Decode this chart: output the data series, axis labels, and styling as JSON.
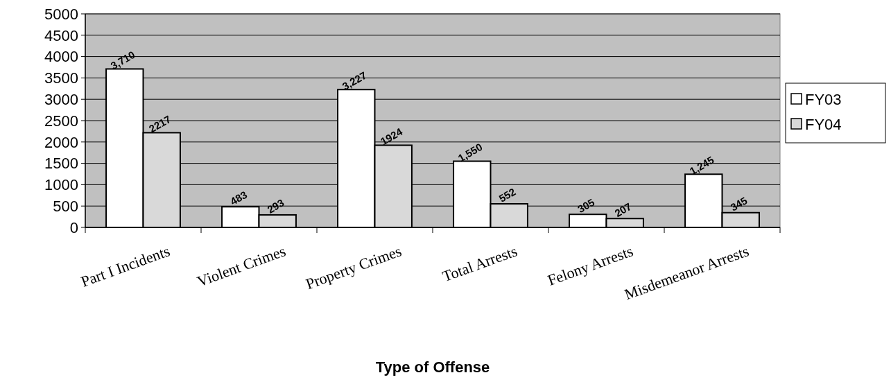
{
  "chart_data": {
    "type": "bar",
    "xlabel": "Type of Offense",
    "categories": [
      "Part I Incidents",
      "Violent Crimes",
      "Property Crimes",
      "Total Arrests",
      "Felony Arrests",
      "Misdemeanor Arrests"
    ],
    "series": [
      {
        "name": "FY03",
        "color": "#ffffff",
        "values": [
          3710,
          483,
          3227,
          1550,
          305,
          1245
        ],
        "value_labels": [
          "3,710",
          "483",
          "3,227",
          "1,550",
          "305",
          "1,245"
        ]
      },
      {
        "name": "FY04",
        "color": "#d9d9d9",
        "values": [
          2217,
          293,
          1924,
          552,
          207,
          345
        ],
        "value_labels": [
          "2217",
          "293",
          "1924",
          "552",
          "207",
          "345"
        ]
      }
    ],
    "ylim": [
      0,
      5000
    ],
    "yticks": [
      0,
      500,
      1000,
      1500,
      2000,
      2500,
      3000,
      3500,
      4000,
      4500,
      5000
    ],
    "grid": "y",
    "legend": "right"
  }
}
